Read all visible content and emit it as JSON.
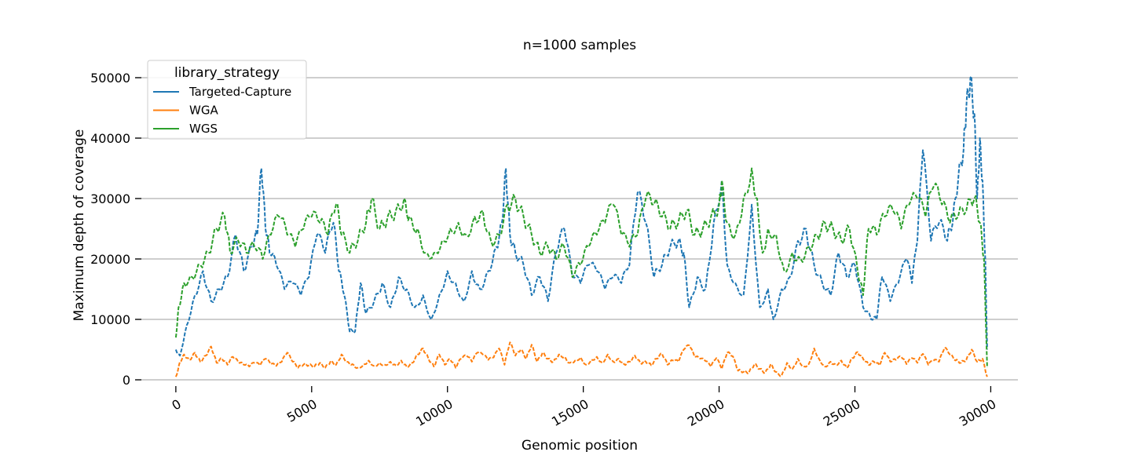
{
  "chart_data": {
    "type": "line",
    "title": "n=1000 samples",
    "xlabel": "Genomic position",
    "ylabel": "Maximum depth of coverage",
    "xlim": [
      -1500,
      31000
    ],
    "ylim": [
      0,
      52000
    ],
    "xticks": [
      0,
      5000,
      10000,
      15000,
      20000,
      25000,
      30000
    ],
    "yticks": [
      0,
      10000,
      20000,
      30000,
      40000,
      50000
    ],
    "grid": "horizontal",
    "legend": {
      "title": "library_strategy",
      "placement": "top-left"
    },
    "series": [
      {
        "name": "Targeted-Capture",
        "color": "#1f77b4",
        "style": "dashed",
        "x": [
          0,
          150,
          400,
          700,
          1000,
          1300,
          1600,
          1900,
          2200,
          2500,
          2800,
          3000,
          3150,
          3300,
          3450,
          3700,
          4000,
          4300,
          4600,
          4900,
          5200,
          5500,
          5800,
          6000,
          6200,
          6400,
          6600,
          6800,
          7000,
          7300,
          7600,
          7900,
          8200,
          8500,
          8800,
          9100,
          9400,
          9700,
          10000,
          10300,
          10600,
          10900,
          11200,
          11500,
          11800,
          12000,
          12150,
          12300,
          12500,
          12800,
          13100,
          13400,
          13700,
          14000,
          14300,
          14600,
          14900,
          15200,
          15500,
          15800,
          16100,
          16400,
          16700,
          17000,
          17300,
          17600,
          17900,
          18200,
          18500,
          18700,
          18900,
          19200,
          19500,
          19800,
          20100,
          20300,
          20600,
          20900,
          21200,
          21500,
          21800,
          22000,
          22300,
          22600,
          22900,
          23200,
          23500,
          23800,
          24100,
          24400,
          24700,
          25000,
          25300,
          25600,
          25800,
          26000,
          26300,
          26600,
          26900,
          27100,
          27300,
          27500,
          27800,
          28100,
          28400,
          28600,
          28800,
          29000,
          29100,
          29250,
          29400,
          29500,
          29600,
          29700,
          29800,
          29870
        ],
        "y": [
          5000,
          4000,
          9000,
          14000,
          18000,
          13000,
          15000,
          17000,
          24000,
          18000,
          22000,
          24000,
          35000,
          25000,
          21000,
          19000,
          15000,
          16000,
          14000,
          17000,
          24000,
          21000,
          26000,
          18000,
          14000,
          8000,
          8000,
          16000,
          11000,
          13000,
          16000,
          12000,
          17000,
          15000,
          12000,
          14000,
          10000,
          14000,
          18000,
          16000,
          13000,
          18000,
          15000,
          18000,
          22000,
          26000,
          35000,
          24000,
          21000,
          19000,
          14000,
          17000,
          13000,
          21000,
          25000,
          17000,
          16000,
          19000,
          18000,
          15000,
          17000,
          16000,
          19000,
          31000,
          26000,
          17000,
          19000,
          22000,
          23000,
          21000,
          12000,
          17000,
          15000,
          26000,
          33000,
          19000,
          16000,
          14000,
          29000,
          12000,
          15000,
          10000,
          15000,
          17000,
          23000,
          25000,
          19000,
          16000,
          14000,
          21000,
          17000,
          19000,
          12000,
          10000,
          10000,
          17000,
          13000,
          16000,
          20000,
          16000,
          23000,
          38000,
          23000,
          26000,
          23000,
          26000,
          33000,
          38000,
          45000,
          50000,
          44000,
          30000,
          40000,
          33000,
          20000,
          5000
        ]
      },
      {
        "name": "WGA",
        "color": "#ff7f0e",
        "style": "dashed",
        "x": [
          0,
          150,
          300,
          500,
          700,
          900,
          1100,
          1300,
          1500,
          1700,
          1900,
          2100,
          2300,
          2500,
          2700,
          2900,
          3100,
          3300,
          3500,
          3700,
          3900,
          4100,
          4300,
          4500,
          4700,
          4900,
          5100,
          5300,
          5500,
          5700,
          5900,
          6100,
          6300,
          6500,
          6700,
          6900,
          7100,
          7300,
          7500,
          7700,
          7900,
          8100,
          8300,
          8500,
          8700,
          8900,
          9100,
          9300,
          9500,
          9700,
          9900,
          10100,
          10300,
          10500,
          10700,
          10900,
          11100,
          11300,
          11500,
          11700,
          11900,
          12100,
          12300,
          12500,
          12700,
          12900,
          13100,
          13300,
          13500,
          13700,
          13900,
          14100,
          14300,
          14500,
          14700,
          14900,
          15100,
          15300,
          15500,
          15700,
          15900,
          16100,
          16300,
          16500,
          16700,
          16900,
          17100,
          17300,
          17500,
          17700,
          17900,
          18100,
          18300,
          18500,
          18700,
          18900,
          19100,
          19300,
          19500,
          19700,
          19900,
          20100,
          20300,
          20500,
          20700,
          20900,
          21100,
          21300,
          21500,
          21700,
          21900,
          22100,
          22300,
          22500,
          22700,
          22900,
          23100,
          23300,
          23500,
          23700,
          23900,
          24100,
          24300,
          24500,
          24700,
          24900,
          25100,
          25300,
          25500,
          25700,
          25900,
          26100,
          26300,
          26500,
          26700,
          26900,
          27100,
          27300,
          27500,
          27700,
          27900,
          28100,
          28300,
          28500,
          28700,
          28900,
          29100,
          29300,
          29500,
          29700,
          29870
        ],
        "y": [
          500,
          3000,
          4200,
          3300,
          4500,
          3000,
          4000,
          5500,
          2800,
          3500,
          2500,
          3800,
          2900,
          2500,
          2200,
          2800,
          2400,
          3500,
          2600,
          2300,
          3000,
          4500,
          3000,
          2000,
          2500,
          2400,
          2200,
          2800,
          2000,
          3100,
          2500,
          4200,
          3000,
          2600,
          2000,
          2500,
          3200,
          2300,
          2800,
          2500,
          3000,
          2400,
          3200,
          2200,
          2800,
          4200,
          5200,
          3500,
          2200,
          4200,
          2500,
          3400,
          2000,
          3500,
          4000,
          3000,
          4500,
          4200,
          3300,
          3700,
          5200,
          2500,
          6200,
          4000,
          5000,
          3500,
          5800,
          3000,
          4500,
          3500,
          3000,
          4200,
          3800,
          2800,
          3200,
          3700,
          2500,
          3300,
          3800,
          2800,
          4200,
          3000,
          3500,
          2600,
          3000,
          4000,
          2800,
          3000,
          2400,
          3500,
          4300,
          2500,
          3200,
          3000,
          5000,
          5700,
          3800,
          3500,
          3100,
          2200,
          3600,
          1800,
          4500,
          3900,
          1500,
          1300,
          1200,
          2600,
          1800,
          1200,
          2600,
          1300,
          700,
          2800,
          1800,
          3500,
          2200,
          2600,
          5200,
          3300,
          2200,
          3000,
          2500,
          3200,
          2000,
          3600,
          4600,
          3500,
          2500,
          3000,
          2400,
          4500,
          3000,
          3300,
          3800,
          2600,
          3600,
          2800,
          4300,
          2500,
          3200,
          3000,
          5300,
          4200,
          3200,
          2800,
          3300,
          5000,
          3000,
          3500,
          500
        ]
      },
      {
        "name": "WGS",
        "color": "#2ca02c",
        "style": "dashed",
        "x": [
          0,
          100,
          300,
          600,
          900,
          1200,
          1500,
          1800,
          2000,
          2300,
          2600,
          2900,
          3200,
          3500,
          3800,
          4100,
          4400,
          4700,
          5000,
          5300,
          5600,
          5900,
          6100,
          6400,
          6700,
          7000,
          7200,
          7500,
          7800,
          8100,
          8400,
          8600,
          8900,
          9200,
          9500,
          9800,
          10100,
          10400,
          10700,
          11000,
          11300,
          11600,
          11900,
          12200,
          12500,
          12800,
          13100,
          13400,
          13700,
          14000,
          14300,
          14600,
          14900,
          15200,
          15500,
          15800,
          16100,
          16400,
          16700,
          17000,
          17300,
          17600,
          17900,
          18200,
          18500,
          18800,
          19100,
          19400,
          19700,
          20000,
          20100,
          20300,
          20600,
          20900,
          21200,
          21400,
          21600,
          21800,
          22100,
          22400,
          22700,
          23000,
          23300,
          23600,
          23900,
          24200,
          24500,
          24800,
          25100,
          25300,
          25500,
          25800,
          26100,
          26400,
          26700,
          27000,
          27300,
          27600,
          27900,
          28200,
          28500,
          28800,
          29100,
          29400,
          29600,
          29750,
          29870
        ],
        "y": [
          7000,
          12000,
          16000,
          17000,
          19000,
          21000,
          25000,
          27000,
          21000,
          23000,
          21000,
          22000,
          20000,
          24000,
          27000,
          24000,
          22000,
          25000,
          27000,
          26000,
          24000,
          29000,
          24000,
          21000,
          23000,
          26000,
          30000,
          25000,
          27000,
          28000,
          30000,
          27000,
          25000,
          21000,
          21000,
          23000,
          25000,
          26000,
          24000,
          27000,
          28000,
          23000,
          24000,
          29000,
          30000,
          27000,
          24000,
          21000,
          22000,
          20000,
          22000,
          17000,
          19000,
          22000,
          24000,
          26000,
          29000,
          24000,
          22000,
          24000,
          30000,
          29000,
          27000,
          25000,
          26000,
          28000,
          24000,
          25000,
          27000,
          29000,
          33000,
          26000,
          24000,
          30000,
          35000,
          30000,
          21000,
          25000,
          24000,
          18000,
          21000,
          20000,
          22000,
          24000,
          26000,
          25000,
          23000,
          25000,
          18000,
          14000,
          25000,
          24000,
          27000,
          28000,
          25000,
          29000,
          30000,
          27000,
          32000,
          29000,
          26000,
          27000,
          28000,
          30000,
          26000,
          20000,
          2000
        ]
      }
    ]
  }
}
